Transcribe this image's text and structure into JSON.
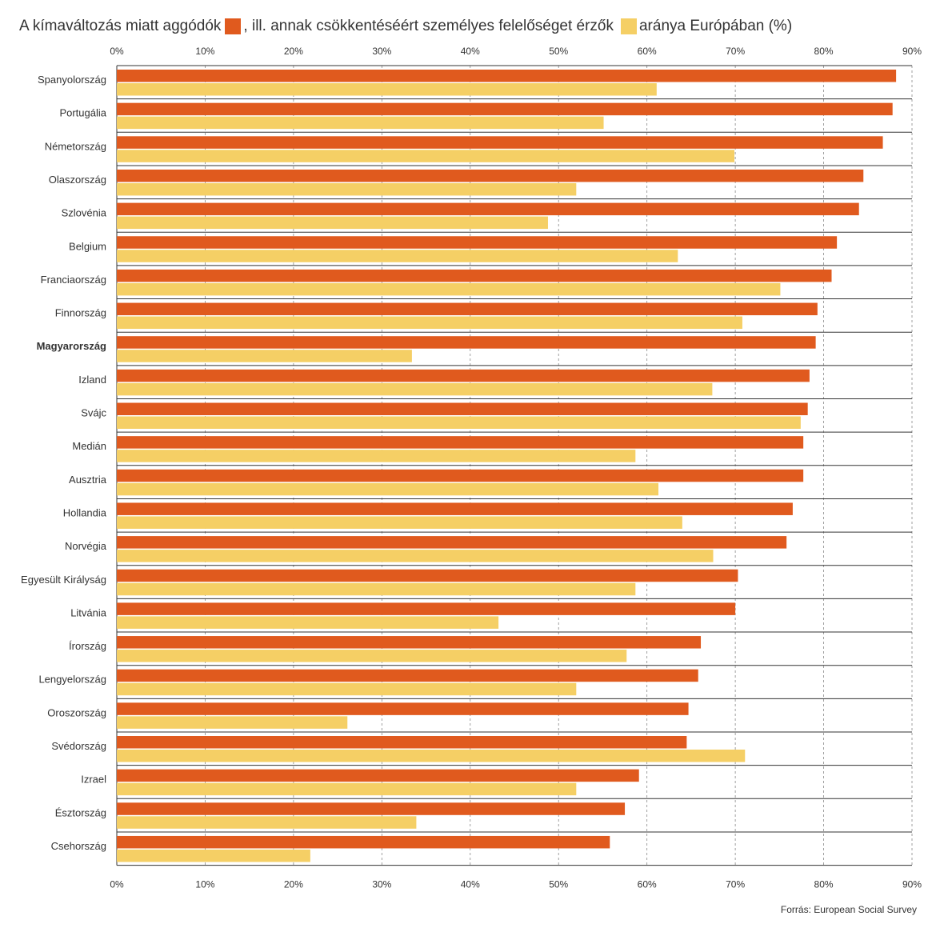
{
  "title": {
    "part1": "A kímaváltozás miatt aggódók",
    "part2": ", ill. annak csökkentéséért személyes felelőséget érzők",
    "part3": "aránya Európában (%)"
  },
  "source": "Forrás: European Social Survey",
  "colors": {
    "worried": "#e05a1e",
    "responsible": "#f5cf65"
  },
  "chart_data": {
    "type": "bar",
    "orientation": "horizontal",
    "xlim": [
      0,
      90
    ],
    "ticks": [
      0,
      10,
      20,
      30,
      40,
      50,
      60,
      70,
      80,
      90
    ],
    "tick_labels": [
      "0%",
      "10%",
      "20%",
      "30%",
      "40%",
      "50%",
      "60%",
      "70%",
      "80%",
      "90%"
    ],
    "grid": true,
    "highlight_category": "Magyarország",
    "categories": [
      "Spanyolország",
      "Portugália",
      "Németország",
      "Olaszország",
      "Szlovénia",
      "Belgium",
      "Franciaország",
      "Finnország",
      "Magyarország",
      "Izland",
      "Svájc",
      "Medián",
      "Ausztria",
      "Hollandia",
      "Norvégia",
      "Egyesült Királyság",
      "Litvánia",
      "Írország",
      "Lengyelország",
      "Oroszország",
      "Svédország",
      "Izrael",
      "Észtország",
      "Csehország"
    ],
    "series": [
      {
        "name": "A kímaváltozás miatt aggódók",
        "values": [
          88.2,
          87.8,
          86.7,
          84.5,
          84.0,
          81.5,
          80.9,
          79.3,
          79.1,
          78.4,
          78.2,
          77.7,
          77.7,
          76.5,
          75.8,
          70.3,
          70.0,
          66.1,
          65.8,
          64.7,
          64.5,
          59.1,
          57.5,
          55.8
        ]
      },
      {
        "name": "annak csökkentéséért személyes felelőséget érzők",
        "values": [
          61.1,
          55.1,
          69.9,
          52.0,
          48.8,
          63.5,
          75.1,
          70.8,
          33.4,
          67.4,
          77.4,
          58.7,
          61.3,
          64.0,
          67.5,
          58.7,
          43.2,
          57.7,
          52.0,
          26.1,
          71.1,
          52.0,
          33.9,
          21.9
        ]
      }
    ]
  }
}
